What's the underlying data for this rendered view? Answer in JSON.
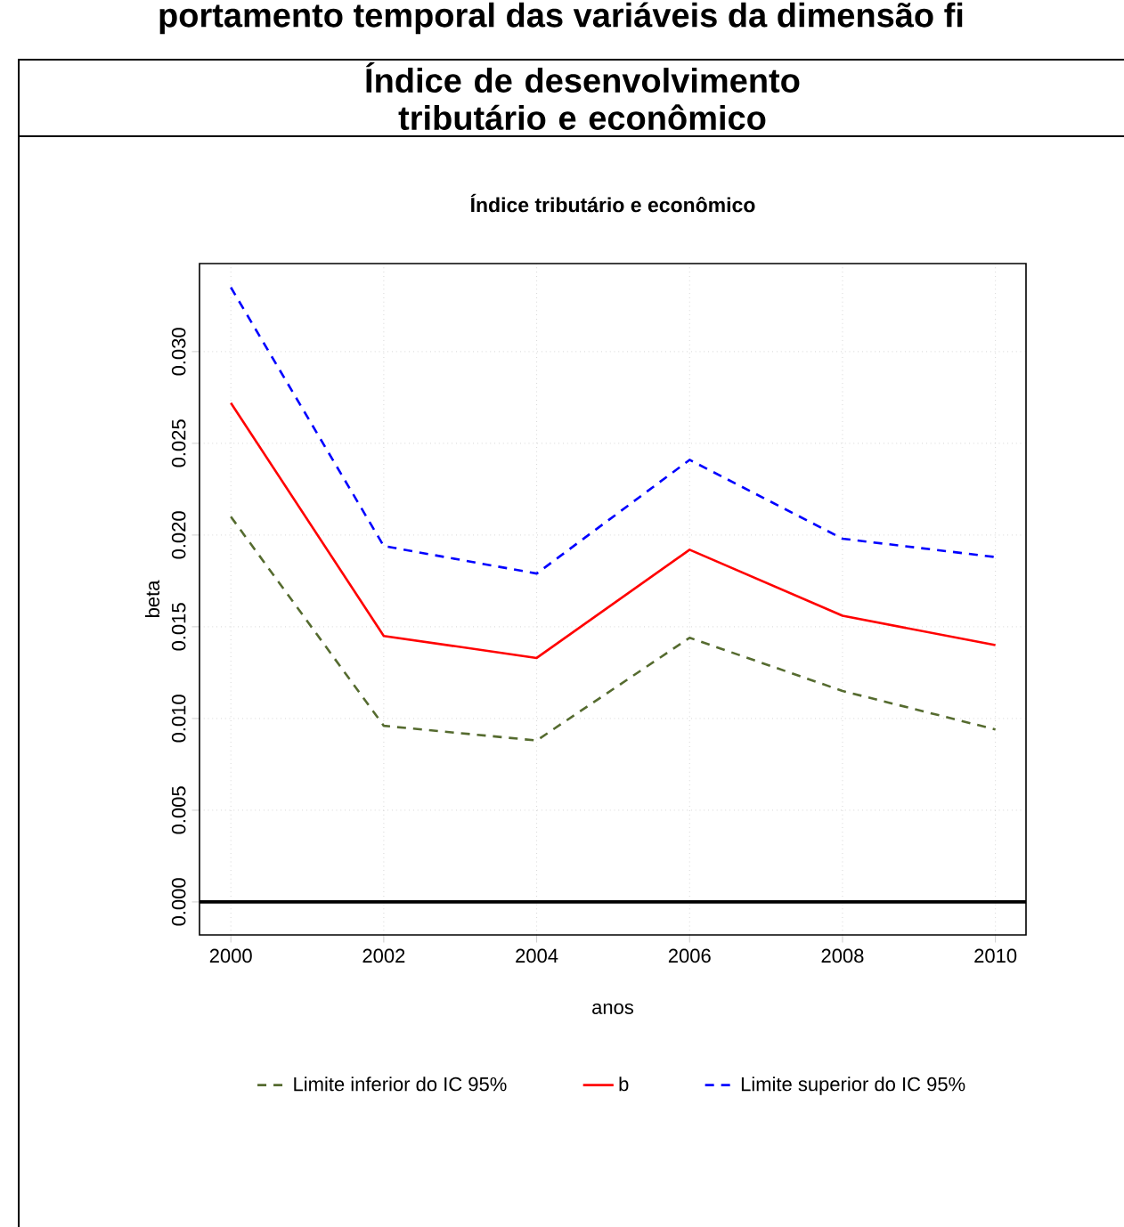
{
  "chart_data": {
    "type": "line",
    "title": "Índice de desenvolvimento tributário e econômico",
    "subtitle": "Índice tributário e econômico",
    "annotations": [
      "portamento temporal das variáveis da dimensão fi"
    ],
    "xlabel": "anos",
    "ylabel": "beta",
    "x": [
      2000,
      2002,
      2004,
      2006,
      2008,
      2010
    ],
    "series": [
      {
        "name": "Limite inferior do IC 95%",
        "color": "#556b2f",
        "line_style": "dashed",
        "values": [
          0.021,
          0.0096,
          0.0088,
          0.0144,
          0.0115,
          0.0094
        ]
      },
      {
        "name": "b",
        "color": "#ff0000",
        "line_style": "solid",
        "values": [
          0.0272,
          0.0145,
          0.0133,
          0.0192,
          0.0156,
          0.014
        ]
      },
      {
        "name": "Limite superior do IC 95%",
        "color": "#0000ff",
        "line_style": "dashed",
        "values": [
          0.0335,
          0.0194,
          0.0179,
          0.0241,
          0.0198,
          0.0188
        ]
      }
    ],
    "xlim": [
      1999.59,
      2010.4
    ],
    "ylim": [
      -0.0018,
      0.0348
    ],
    "xticks": [
      2000,
      2002,
      2004,
      2006,
      2008,
      2010
    ],
    "yticks": [
      {
        "value": 0,
        "label": "0.000"
      },
      {
        "value": 0.005,
        "label": "0.005"
      },
      {
        "value": 0.01,
        "label": "0.010"
      },
      {
        "value": 0.015,
        "label": "0.015"
      },
      {
        "value": 0.02,
        "label": "0.020"
      },
      {
        "value": 0.025,
        "label": "0.025"
      },
      {
        "value": 0.03,
        "label": "0.030"
      }
    ],
    "ref_lines": [
      {
        "axis": "y",
        "value": 0,
        "color": "#000000",
        "line_style": "solid"
      }
    ],
    "grid": true,
    "legend": "bottom",
    "marker": "none"
  }
}
